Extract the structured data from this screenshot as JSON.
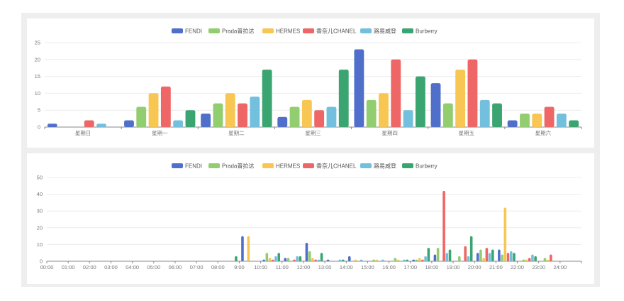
{
  "colors": {
    "FENDI": "#4f6fcb",
    "Prada普拉达": "#92ce6f",
    "HERMES": "#f7c653",
    "香奈儿CHANEL": "#ef6666",
    "路易威登": "#73bfde",
    "Burberry": "#3aa571"
  },
  "chart_data": [
    {
      "type": "bar",
      "legend": [
        "FENDI",
        "Prada普拉达",
        "HERMES",
        "香奈儿CHANEL",
        "路易威登",
        "Burberry"
      ],
      "categories": [
        "星期日",
        "星期一",
        "星期二",
        "星期三",
        "星期四",
        "星期五",
        "星期六"
      ],
      "ylim": [
        0,
        25
      ],
      "yticks": [
        0,
        5,
        10,
        15,
        20,
        25
      ],
      "series": [
        {
          "name": "FENDI",
          "values": [
            1,
            2,
            4,
            3,
            23,
            13,
            2
          ]
        },
        {
          "name": "Prada普拉达",
          "values": [
            0,
            6,
            7,
            6,
            8,
            7,
            4
          ]
        },
        {
          "name": "HERMES",
          "values": [
            0,
            10,
            10,
            8,
            10,
            17,
            4
          ]
        },
        {
          "name": "香奈儿CHANEL",
          "values": [
            2,
            12,
            7,
            5,
            20,
            20,
            6
          ]
        },
        {
          "name": "路易威登",
          "values": [
            1,
            2,
            9,
            6,
            5,
            8,
            4
          ]
        },
        {
          "name": "Burberry",
          "values": [
            0,
            5,
            17,
            17,
            15,
            7,
            2
          ]
        }
      ]
    },
    {
      "type": "bar",
      "legend": [
        "FENDI",
        "Prada普拉达",
        "HERMES",
        "香奈儿CHANEL",
        "路易威登",
        "Burberry"
      ],
      "categories": [
        "00:00",
        "01:00",
        "02:00",
        "03:00",
        "04:00",
        "05:00",
        "06:00",
        "07:00",
        "08:00",
        "9:00",
        "10:00",
        "11:00",
        "12:00",
        "13:00",
        "14:00",
        "15:00",
        "16:00",
        "17:00",
        "18:00",
        "19:00",
        "20:00",
        "21:00",
        "22:00",
        "23:00",
        "24:00"
      ],
      "ylim": [
        0,
        50
      ],
      "yticks": [
        0,
        10,
        20,
        30,
        40,
        50
      ],
      "series": [
        {
          "name": "FENDI",
          "values": [
            0,
            0,
            0,
            0,
            0,
            0,
            0,
            0,
            0,
            15,
            1,
            2,
            11,
            1,
            3,
            0,
            0,
            1,
            4,
            0,
            5,
            7,
            0,
            0,
            0
          ]
        },
        {
          "name": "Prada普拉达",
          "values": [
            0,
            0,
            0,
            0,
            0,
            0,
            0,
            0,
            0,
            0,
            5,
            2,
            6,
            0,
            0,
            1,
            2,
            1,
            8,
            3,
            7,
            4,
            1,
            2,
            0
          ]
        },
        {
          "name": "HERMES",
          "values": [
            0,
            0,
            0,
            0,
            0,
            0,
            0,
            0,
            0,
            15,
            2,
            0,
            2,
            0,
            1,
            1,
            1,
            2,
            0,
            0,
            2,
            32,
            1,
            1,
            0
          ]
        },
        {
          "name": "香奈儿CHANEL",
          "values": [
            0,
            0,
            0,
            0,
            0,
            0,
            0,
            0,
            0,
            0,
            1,
            1,
            1,
            0,
            0,
            0,
            0,
            1,
            42,
            9,
            8,
            5,
            2,
            4,
            0
          ]
        },
        {
          "name": "路易威登",
          "values": [
            0,
            0,
            0,
            0,
            0,
            0,
            0,
            0,
            0,
            0,
            3,
            3,
            1,
            1,
            1,
            1,
            1,
            3,
            5,
            3,
            5,
            6,
            4,
            0,
            0
          ]
        },
        {
          "name": "Burberry",
          "values": [
            0,
            0,
            0,
            0,
            0,
            0,
            0,
            0,
            3,
            0,
            5,
            3,
            5,
            1,
            0,
            0,
            1,
            8,
            7,
            15,
            7,
            5,
            3,
            0,
            0
          ]
        }
      ]
    }
  ]
}
